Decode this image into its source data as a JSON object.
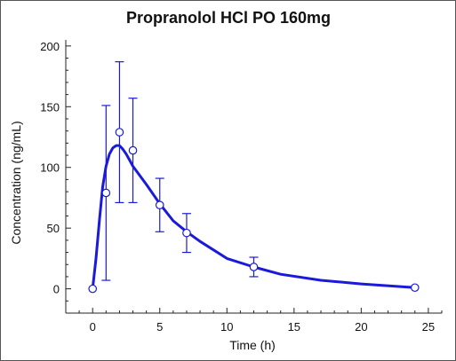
{
  "chart_data": {
    "type": "scatter",
    "title": "Propranolol HCl PO 160mg",
    "xlabel": "Time (h)",
    "ylabel": "Concentration (ng/mL)",
    "xlim": [
      -2,
      26
    ],
    "ylim": [
      -20,
      205
    ],
    "xticks": [
      0,
      5,
      10,
      15,
      20,
      25
    ],
    "yticks": [
      0,
      50,
      100,
      150,
      200
    ],
    "grid": false,
    "colors": {
      "series": "#1a1adb",
      "axis": "#222222"
    },
    "observed": {
      "x": [
        0,
        1,
        2,
        3,
        5,
        7,
        12,
        24
      ],
      "y": [
        0,
        79,
        129,
        114,
        69,
        46,
        18,
        1
      ],
      "err": [
        0,
        72,
        58,
        43,
        22,
        16,
        8,
        0
      ]
    },
    "fitted": {
      "x": [
        0,
        0.25,
        0.5,
        0.75,
        1,
        1.25,
        1.5,
        1.75,
        2,
        2.25,
        2.5,
        2.75,
        3,
        4,
        5,
        6,
        7,
        8,
        10,
        12,
        14,
        17,
        20,
        24
      ],
      "y": [
        0,
        25,
        56,
        84,
        101,
        111,
        116,
        118,
        118,
        115,
        111,
        106,
        101,
        86,
        70,
        56,
        47,
        39,
        25,
        18,
        12,
        7,
        4,
        1
      ]
    }
  }
}
